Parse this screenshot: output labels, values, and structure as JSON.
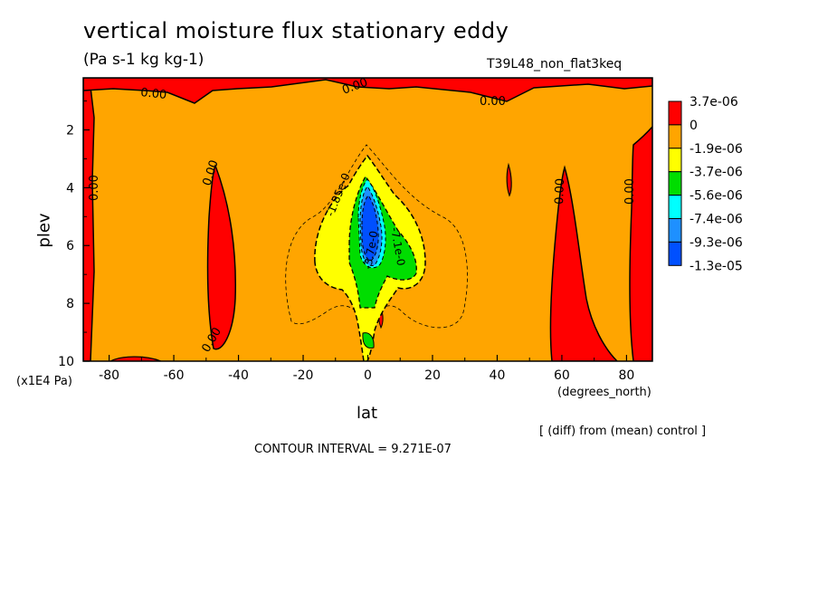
{
  "chart_data": {
    "type": "heatmap",
    "title": "vertical moisture flux stationary eddy",
    "units": "(Pa s-1 kg kg-1)",
    "run_id": "T39L48_non_flat3keq",
    "xlabel": "lat",
    "x_unit": "(degrees_north)",
    "ylabel": "plev",
    "y_unit": "(x1E4 Pa)",
    "xlim": [
      -88,
      88
    ],
    "ylim": [
      10,
      0.2
    ],
    "x_ticks": [
      -80,
      -60,
      -40,
      -20,
      0,
      20,
      40,
      60,
      80
    ],
    "x_tick_labels": [
      "-80",
      "-60",
      "-40",
      "-20",
      "0",
      "20",
      "40",
      "60",
      "80"
    ],
    "y_ticks": [
      2,
      4,
      6,
      8,
      10
    ],
    "y_tick_labels": [
      "2",
      "4",
      "6",
      "8",
      "10"
    ],
    "colorbar": {
      "labels": [
        "3.7e-06",
        "0",
        "-1.9e-06",
        "-3.7e-06",
        "-5.6e-06",
        "-7.4e-06",
        "-9.3e-06",
        "-1.3e-05"
      ],
      "colors": [
        "#ff0000",
        "#ffa500",
        "#ffff00",
        "#00dd00",
        "#00ffff",
        "#1e90ff",
        "#0050ff"
      ]
    },
    "contour_labels": [
      "0.00",
      "-1.85e-0",
      "-3.7e-0",
      "-7.1e-0"
    ],
    "contour_interval_text": "CONTOUR INTERVAL = 9.271E-07",
    "note": "[ (diff) from (mean) control ]"
  }
}
